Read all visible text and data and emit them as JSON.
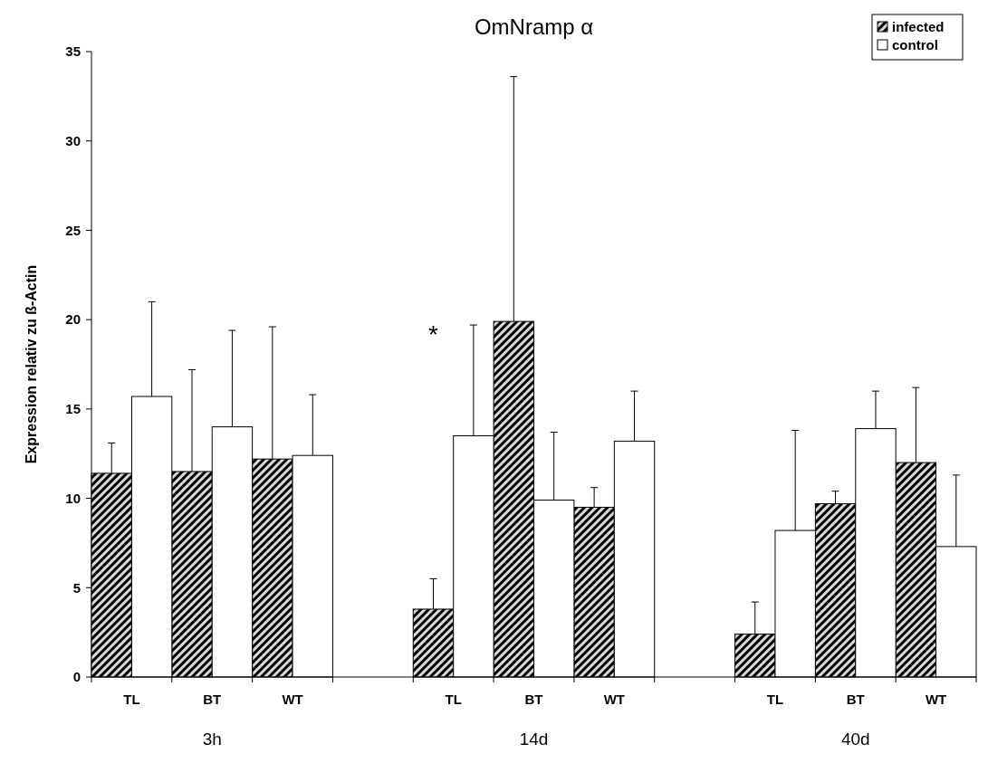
{
  "chart_data": {
    "type": "bar",
    "title": "OmNramp α",
    "ylabel": "Expression relativ zu ß-Actin",
    "categories": [
      "TL",
      "BT",
      "WT",
      null,
      "TL",
      "BT",
      "WT",
      null,
      "TL",
      "BT",
      "WT"
    ],
    "series": [
      {
        "name": "infected",
        "color": "#000000",
        "values": [
          11.4,
          11.5,
          12.2,
          null,
          3.8,
          19.9,
          9.5,
          null,
          2.4,
          9.7,
          12.0
        ],
        "errors": [
          [
            11.4,
            13.1
          ],
          [
            11.5,
            17.2
          ],
          [
            12.2,
            19.6
          ],
          null,
          [
            3.8,
            5.5
          ],
          [
            19.9,
            33.6
          ],
          [
            9.5,
            10.6
          ],
          null,
          [
            2.4,
            4.2
          ],
          [
            9.7,
            10.4
          ],
          [
            12.0,
            16.2
          ]
        ]
      },
      {
        "name": "control",
        "color": "#ffffff",
        "values": [
          15.7,
          14.0,
          12.4,
          null,
          13.5,
          9.9,
          13.2,
          null,
          8.2,
          13.9,
          7.3
        ],
        "errors": [
          [
            15.7,
            21.0
          ],
          [
            14.0,
            19.4
          ],
          [
            12.4,
            15.8
          ],
          null,
          [
            13.5,
            19.7
          ],
          [
            9.9,
            13.7
          ],
          [
            13.2,
            16.0
          ],
          null,
          [
            8.2,
            13.8
          ],
          [
            13.9,
            16.0
          ],
          [
            7.3,
            11.3
          ]
        ]
      }
    ],
    "ylim": [
      0,
      35
    ],
    "yticks": [
      0,
      5,
      10,
      15,
      20,
      25,
      30,
      35
    ],
    "grid": false,
    "legend": "top right",
    "annotations": [
      "3h",
      "14d",
      "40d",
      "*"
    ]
  }
}
